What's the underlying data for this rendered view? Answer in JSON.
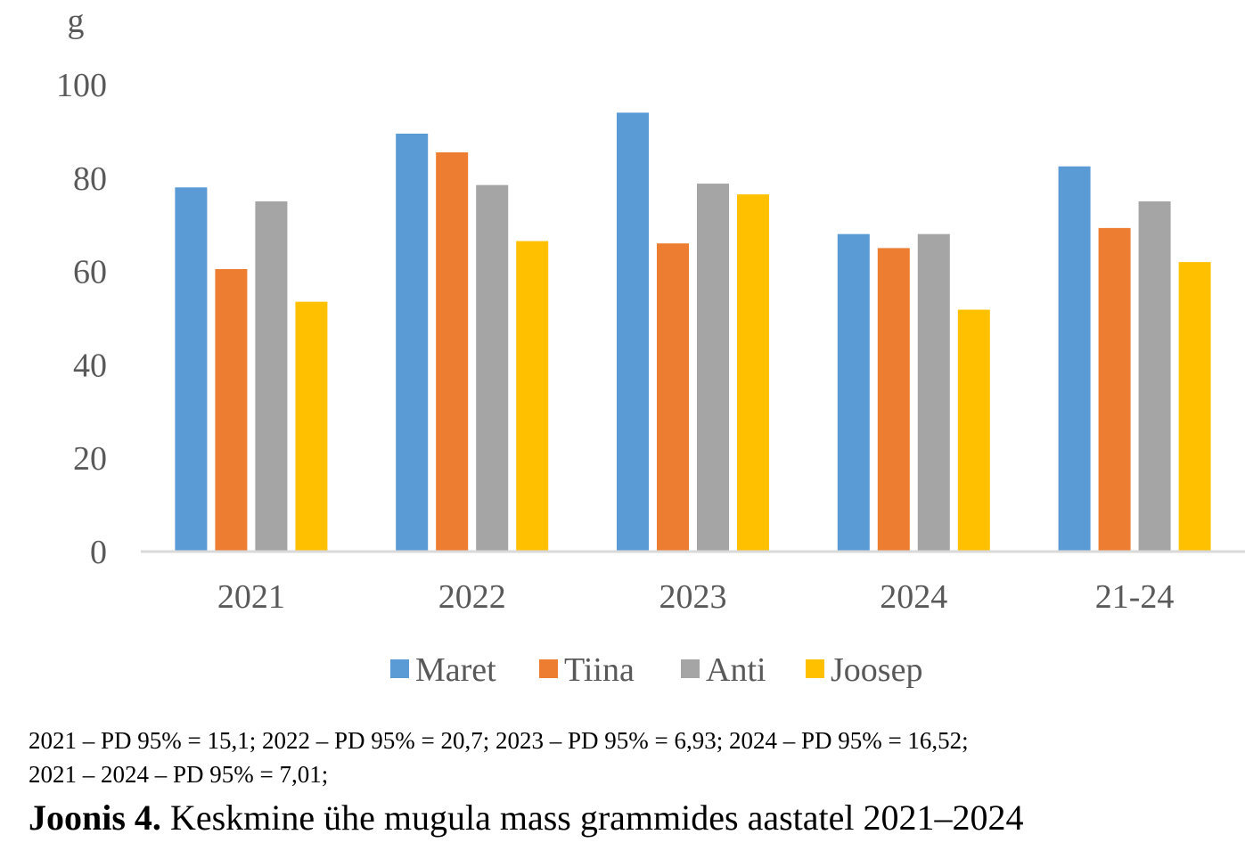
{
  "chart_data": {
    "type": "bar",
    "ylabel": "g",
    "ylim": [
      0,
      100
    ],
    "yticks": [
      0,
      20,
      40,
      60,
      80,
      100
    ],
    "categories": [
      "2021",
      "2022",
      "2023",
      "2024",
      "21-24"
    ],
    "series": [
      {
        "name": "Maret",
        "values": [
          78,
          89.5,
          94,
          68,
          82.5
        ]
      },
      {
        "name": "Tiina",
        "values": [
          60.5,
          85.5,
          66,
          65,
          69.3
        ]
      },
      {
        "name": "Anti",
        "values": [
          75,
          78.5,
          78.8,
          68,
          75
        ]
      },
      {
        "name": "Joosep",
        "values": [
          53.5,
          66.5,
          76.5,
          51.8,
          62
        ]
      }
    ],
    "colors": [
      "#5B9BD5",
      "#ED7D31",
      "#A5A5A5",
      "#FFC000"
    ],
    "grid": false,
    "legend_position": "bottom"
  },
  "notes": {
    "line1": "2021 – PD 95% = 15,1; 2022 – PD 95% = 20,7; 2023 – PD 95% = 6,93; 2024 – PD 95% = 16,52;",
    "line2": "2021 – 2024 – PD 95% = 7,01;"
  },
  "caption": {
    "label": "Joonis 4.",
    "text": " Keskmine ühe mugula mass grammides aastatel 2021–2024"
  }
}
